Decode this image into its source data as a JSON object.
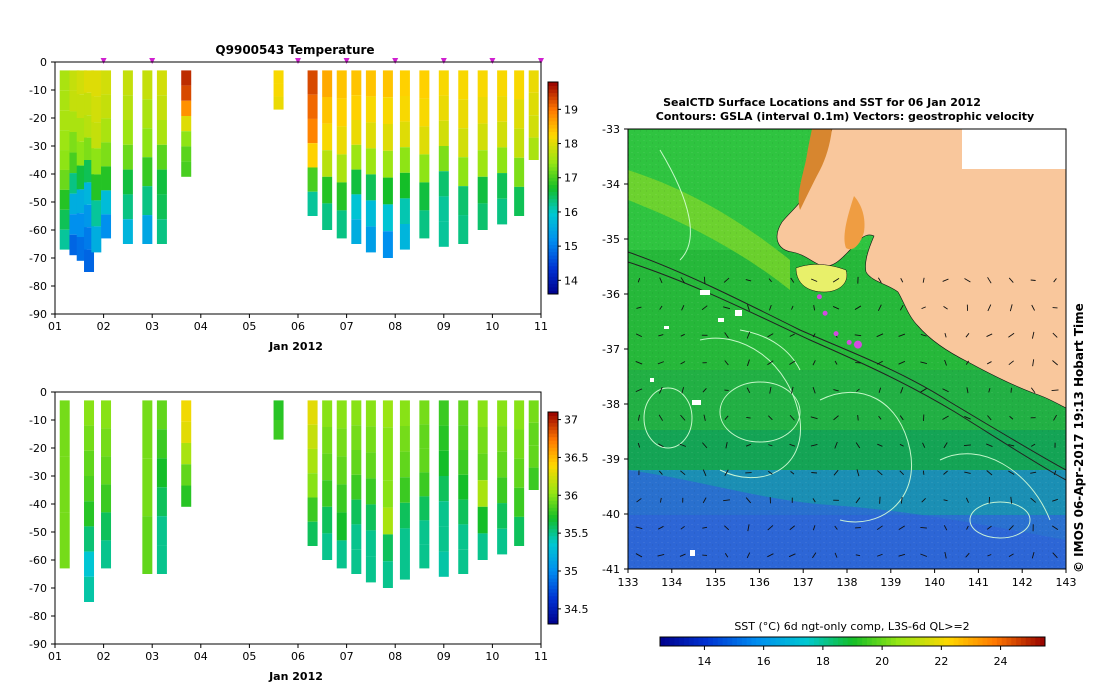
{
  "chart_data": [
    {
      "type": "heatmap",
      "id": "temperature-profile",
      "title": "Q9900543  Temperature",
      "xlabel": "Jan 2012",
      "ylabel": "",
      "x_ticks": [
        "01",
        "02",
        "03",
        "04",
        "05",
        "06",
        "07",
        "08",
        "09",
        "10",
        "11"
      ],
      "xlim": [
        1,
        11
      ],
      "y_ticks": [
        0,
        -10,
        -20,
        -30,
        -40,
        -50,
        -60,
        -70,
        -80,
        -90
      ],
      "ylim": [
        -90,
        0
      ],
      "colorbar": {
        "ticks": [
          14,
          15,
          16,
          17,
          18,
          19
        ],
        "range": [
          13.6,
          19.8
        ]
      },
      "surfacing_markers_day": [
        2.0,
        3.0,
        6.0,
        7.0,
        8.0,
        9.0,
        10.0,
        11.0
      ],
      "profiles": [
        {
          "day": 1.2,
          "top": -3,
          "bottom": -67,
          "values": [
            17.6,
            17.6,
            17.6,
            17.5,
            17.4,
            17.2,
            16.8,
            16.5,
            16.2
          ]
        },
        {
          "day": 1.4,
          "top": -3,
          "bottom": -69,
          "values": [
            17.8,
            17.8,
            17.6,
            17.3,
            17.0,
            16.3,
            15.6,
            15.2,
            14.8
          ]
        },
        {
          "day": 1.55,
          "top": -3,
          "bottom": -71,
          "values": [
            17.9,
            17.8,
            17.6,
            17.4,
            16.6,
            15.6,
            15.2,
            14.9
          ]
        },
        {
          "day": 1.7,
          "top": -3,
          "bottom": -75,
          "values": [
            18.0,
            17.8,
            17.7,
            17.3,
            16.5,
            15.7,
            15.3,
            15.0,
            14.8
          ]
        },
        {
          "day": 1.85,
          "top": -3,
          "bottom": -68,
          "values": [
            18.0,
            17.9,
            17.8,
            17.4,
            16.8,
            16.2,
            15.6
          ]
        },
        {
          "day": 2.05,
          "top": -3,
          "bottom": -63,
          "values": [
            17.9,
            17.8,
            17.6,
            17.3,
            16.8,
            15.8,
            15.2
          ]
        },
        {
          "day": 2.5,
          "top": -3,
          "bottom": -65,
          "values": [
            17.8,
            17.7,
            17.5,
            17.2,
            16.6,
            16.3,
            15.7
          ]
        },
        {
          "day": 2.9,
          "top": -3,
          "bottom": -65,
          "values": [
            17.8,
            17.6,
            17.4,
            16.9,
            16.3,
            15.5
          ]
        },
        {
          "day": 3.2,
          "top": -3,
          "bottom": -65,
          "values": [
            17.9,
            17.8,
            17.6,
            17.1,
            16.6,
            16.5,
            16.3
          ]
        },
        {
          "day": 3.7,
          "top": -3,
          "bottom": -41,
          "values": [
            19.5,
            19.3,
            18.8,
            18.0,
            17.4,
            17.1,
            17.0
          ]
        },
        {
          "day": 5.6,
          "top": -3,
          "bottom": -17,
          "values": [
            18.2,
            18.2,
            18.1
          ]
        },
        {
          "day": 6.3,
          "top": -3,
          "bottom": -55,
          "values": [
            19.3,
            19.1,
            18.9,
            18.3,
            17.0,
            16.2
          ]
        },
        {
          "day": 6.6,
          "top": -3,
          "bottom": -60,
          "values": [
            18.6,
            18.4,
            18.2,
            17.7,
            16.8,
            16.3
          ]
        },
        {
          "day": 6.9,
          "top": -3,
          "bottom": -63,
          "values": [
            18.4,
            18.3,
            18.1,
            17.6,
            16.8,
            16.3
          ]
        },
        {
          "day": 7.2,
          "top": -3,
          "bottom": -65,
          "values": [
            18.4,
            18.3,
            18.1,
            17.5,
            16.6,
            15.9,
            15.6
          ]
        },
        {
          "day": 7.5,
          "top": -3,
          "bottom": -68,
          "values": [
            18.4,
            18.2,
            18.0,
            17.5,
            16.5,
            15.8,
            15.4
          ]
        },
        {
          "day": 7.85,
          "top": -3,
          "bottom": -70,
          "values": [
            18.4,
            18.2,
            18.0,
            17.5,
            16.7,
            15.9,
            15.2
          ]
        },
        {
          "day": 8.2,
          "top": -3,
          "bottom": -67,
          "values": [
            18.3,
            18.2,
            18.0,
            17.4,
            16.7,
            16.1,
            15.7
          ]
        },
        {
          "day": 8.6,
          "top": -3,
          "bottom": -63,
          "values": [
            18.3,
            18.2,
            18.0,
            17.4,
            16.6,
            16.3
          ]
        },
        {
          "day": 9.0,
          "top": -3,
          "bottom": -66,
          "values": [
            18.2,
            18.1,
            17.9,
            17.3,
            16.4,
            16.2,
            16.2
          ]
        },
        {
          "day": 9.4,
          "top": -3,
          "bottom": -65,
          "values": [
            18.2,
            18.1,
            17.9,
            17.4,
            16.4,
            16.3
          ]
        },
        {
          "day": 9.8,
          "top": -3,
          "bottom": -60,
          "values": [
            18.2,
            18.1,
            17.9,
            17.5,
            16.6,
            16.4
          ]
        },
        {
          "day": 10.2,
          "top": -3,
          "bottom": -58,
          "values": [
            18.2,
            18.1,
            17.9,
            17.4,
            16.5,
            16.3
          ]
        },
        {
          "day": 10.55,
          "top": -3,
          "bottom": -55,
          "values": [
            18.2,
            18.0,
            17.8,
            17.3,
            16.5
          ]
        },
        {
          "day": 10.85,
          "top": -3,
          "bottom": -35,
          "values": [
            18.1,
            18.0,
            17.9,
            17.6
          ]
        }
      ]
    },
    {
      "type": "heatmap",
      "id": "salinity-profile",
      "title": "",
      "xlabel": "Jan 2012",
      "ylabel": "",
      "x_ticks": [
        "01",
        "02",
        "03",
        "04",
        "05",
        "06",
        "07",
        "08",
        "09",
        "10",
        "11"
      ],
      "xlim": [
        1,
        11
      ],
      "y_ticks": [
        0,
        -10,
        -20,
        -30,
        -40,
        -50,
        -60,
        -70,
        -80,
        -90
      ],
      "ylim": [
        -90,
        0
      ],
      "colorbar": {
        "ticks": [
          34.5,
          35,
          35.5,
          36,
          36.5,
          37
        ],
        "range": [
          34.3,
          37.1
        ]
      },
      "profiles": [
        {
          "day": 1.2,
          "top": -3,
          "bottom": -63,
          "values": [
            35.95,
            35.95,
            35.95
          ]
        },
        {
          "day": 1.7,
          "top": -3,
          "bottom": -75,
          "values": [
            36.0,
            35.95,
            35.9,
            35.85,
            35.75,
            35.55,
            35.35,
            35.45
          ]
        },
        {
          "day": 2.05,
          "top": -3,
          "bottom": -63,
          "values": [
            36.0,
            35.95,
            35.9,
            35.8,
            35.6,
            35.5
          ]
        },
        {
          "day": 2.9,
          "top": -3,
          "bottom": -65,
          "values": [
            35.95,
            35.95,
            35.9
          ]
        },
        {
          "day": 3.2,
          "top": -3,
          "bottom": -65,
          "values": [
            35.9,
            35.8,
            35.7,
            35.6,
            35.5,
            35.5
          ]
        },
        {
          "day": 3.7,
          "top": -3,
          "bottom": -41,
          "values": [
            36.35,
            36.3,
            36.1,
            35.9,
            35.75
          ]
        },
        {
          "day": 5.6,
          "top": -3,
          "bottom": -17,
          "values": [
            35.75,
            35.8
          ]
        },
        {
          "day": 6.3,
          "top": -3,
          "bottom": -55,
          "values": [
            36.3,
            36.2,
            36.1,
            36.0,
            35.8,
            35.6
          ]
        },
        {
          "day": 6.6,
          "top": -3,
          "bottom": -60,
          "values": [
            36.0,
            35.95,
            35.9,
            35.8,
            35.6,
            35.5
          ]
        },
        {
          "day": 6.9,
          "top": -3,
          "bottom": -63,
          "values": [
            36.0,
            35.95,
            35.9,
            35.8,
            35.7,
            35.5
          ]
        },
        {
          "day": 7.2,
          "top": -3,
          "bottom": -65,
          "values": [
            36.0,
            35.95,
            35.9,
            35.8,
            35.6,
            35.5,
            35.5
          ]
        },
        {
          "day": 7.5,
          "top": -3,
          "bottom": -68,
          "values": [
            36.0,
            35.95,
            35.9,
            35.8,
            35.6,
            35.5,
            35.5
          ]
        },
        {
          "day": 7.85,
          "top": -3,
          "bottom": -70,
          "values": [
            36.05,
            36.0,
            36.0,
            36.0,
            36.1,
            35.6,
            35.5
          ]
        },
        {
          "day": 8.2,
          "top": -3,
          "bottom": -67,
          "values": [
            36.0,
            35.95,
            35.9,
            35.8,
            35.6,
            35.5,
            35.5
          ]
        },
        {
          "day": 8.6,
          "top": -3,
          "bottom": -63,
          "values": [
            35.95,
            35.9,
            35.9,
            35.8,
            35.6,
            35.5,
            35.5
          ]
        },
        {
          "day": 9.0,
          "top": -3,
          "bottom": -66,
          "values": [
            35.8,
            35.75,
            35.7,
            35.6,
            35.5,
            35.5,
            35.45
          ]
        },
        {
          "day": 9.4,
          "top": -3,
          "bottom": -65,
          "values": [
            35.9,
            35.85,
            35.8,
            35.7,
            35.6,
            35.5,
            35.5
          ]
        },
        {
          "day": 9.8,
          "top": -3,
          "bottom": -60,
          "values": [
            36.0,
            35.95,
            35.9,
            36.1,
            35.7,
            35.5
          ]
        },
        {
          "day": 10.2,
          "top": -3,
          "bottom": -58,
          "values": [
            36.0,
            35.95,
            35.9,
            35.8,
            35.6,
            35.5
          ]
        },
        {
          "day": 10.55,
          "top": -3,
          "bottom": -55,
          "values": [
            36.0,
            35.95,
            35.9,
            35.8,
            35.6
          ]
        },
        {
          "day": 10.85,
          "top": -3,
          "bottom": -35,
          "values": [
            35.95,
            35.9,
            35.9,
            35.8
          ]
        }
      ]
    },
    {
      "type": "map",
      "id": "sst-map",
      "title_line1": "SealCTD Surface Locations and SST for 06 Jan 2012",
      "title_line2": "Contours: GSLA (interval 0.1m) Vectors: geostrophic velocity",
      "x_ticks": [
        "133",
        "134",
        "135",
        "136",
        "137",
        "138",
        "139",
        "140",
        "141",
        "142",
        "143"
      ],
      "lon_range": [
        133,
        143
      ],
      "y_ticks": [
        "-33",
        "-34",
        "-35",
        "-36",
        "-37",
        "-38",
        "-39",
        "-40",
        "-41"
      ],
      "lat_range": [
        -41,
        -33
      ],
      "colorbar_label": "SST (°C) 6d ngt-only comp, L3S-6d QL>=2",
      "colorbar_ticks": [
        "14",
        "16",
        "18",
        "20",
        "22",
        "24"
      ],
      "colorbar_range": [
        12.5,
        25.5
      ],
      "credit": "© IMOS 06-Apr-2017 19:13 Hobart Time",
      "seal_track": [
        {
          "lon": 137.37,
          "lat": -36.05
        },
        {
          "lon": 137.5,
          "lat": -36.35
        },
        {
          "lon": 137.75,
          "lat": -36.72
        },
        {
          "lon": 138.05,
          "lat": -36.88
        },
        {
          "lon": 138.25,
          "lat": -36.92
        }
      ]
    }
  ]
}
